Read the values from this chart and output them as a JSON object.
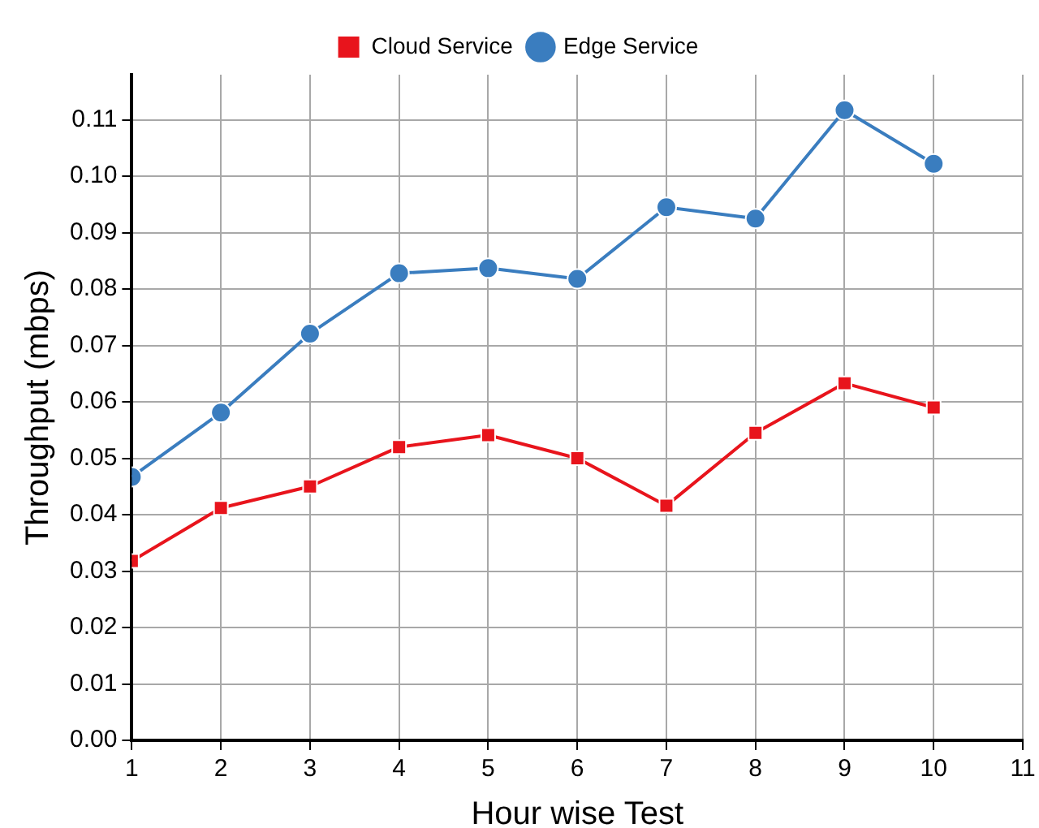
{
  "chart_data": {
    "type": "line",
    "xlabel": "Hour wise Test",
    "ylabel": "Throughput (mbps)",
    "x": [
      1,
      2,
      3,
      4,
      5,
      6,
      7,
      8,
      9,
      10
    ],
    "series": [
      {
        "name": "Cloud Service",
        "color": "#e8141c",
        "marker": "square",
        "values": [
          0.0318,
          0.0412,
          0.045,
          0.052,
          0.0541,
          0.05,
          0.0416,
          0.0545,
          0.0633,
          0.059
        ]
      },
      {
        "name": "Edge Service",
        "color": "#3a7dbf",
        "marker": "circle",
        "values": [
          0.0467,
          0.0581,
          0.0721,
          0.0828,
          0.0837,
          0.0818,
          0.0945,
          0.0925,
          0.1117,
          0.1022
        ]
      }
    ],
    "xlim": [
      1,
      11
    ],
    "xticks": [
      1,
      2,
      3,
      4,
      5,
      6,
      7,
      8,
      9,
      10,
      11
    ],
    "ylim": [
      0,
      0.118
    ],
    "yticks": [
      {
        "value": 0,
        "label": "0.00"
      },
      {
        "value": 0.01,
        "label": "0.01"
      },
      {
        "value": 0.02,
        "label": "0.02"
      },
      {
        "value": 0.03,
        "label": "0.03"
      },
      {
        "value": 0.04,
        "label": "0.04"
      },
      {
        "value": 0.05,
        "label": "0.05"
      },
      {
        "value": 0.06,
        "label": "0.06"
      },
      {
        "value": 0.07,
        "label": "0.07"
      },
      {
        "value": 0.08,
        "label": "0.08"
      },
      {
        "value": 0.09,
        "label": "0.09"
      },
      {
        "value": 0.1,
        "label": "0.10"
      },
      {
        "value": 0.11,
        "label": "0.11"
      }
    ],
    "grid": true,
    "legend": "top",
    "line_style": "solid"
  }
}
